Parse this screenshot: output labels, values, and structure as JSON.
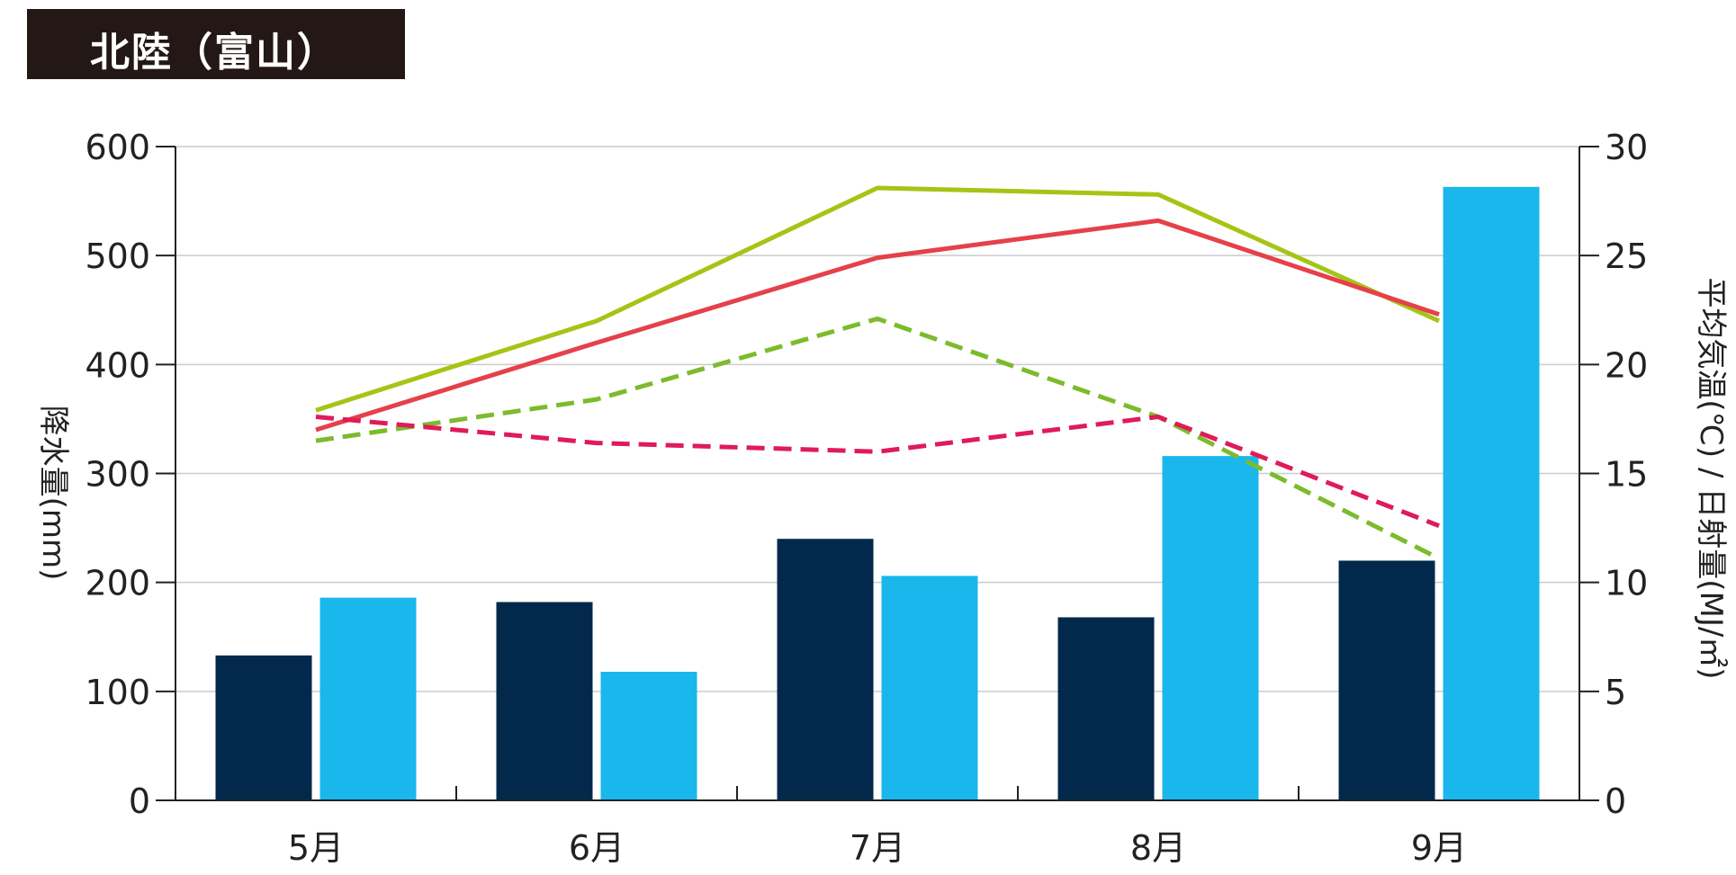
{
  "title": "北陸（富山）",
  "chart_data": {
    "type": "bar",
    "categories": [
      "5月",
      "6月",
      "7月",
      "8月",
      "9月"
    ],
    "left_axis": {
      "label": "降水量(mm)",
      "ylim": [
        0,
        600
      ],
      "ticks": [
        0,
        100,
        200,
        300,
        400,
        500,
        600
      ]
    },
    "right_axis": {
      "label": "平均気温(℃) / 日射量(MJ/㎡)",
      "ylim": [
        0,
        30
      ],
      "ticks": [
        0,
        5,
        10,
        15,
        20,
        25,
        30
      ]
    },
    "grid": true,
    "legend": "none",
    "bar_series": [
      {
        "axis": "left",
        "color": "#02294b",
        "values": [
          133,
          182,
          240,
          168,
          220
        ]
      },
      {
        "axis": "left",
        "color": "#1ab7ed",
        "values": [
          186,
          118,
          206,
          316,
          563
        ]
      }
    ],
    "line_series": [
      {
        "axis": "right",
        "color": "#a5c516",
        "dash": false,
        "values": [
          17.9,
          22.0,
          28.1,
          27.8,
          22.0
        ]
      },
      {
        "axis": "right",
        "color": "#e5414b",
        "dash": false,
        "values": [
          17.0,
          21.0,
          24.9,
          26.6,
          22.3
        ]
      },
      {
        "axis": "right",
        "color": "#7cbb2c",
        "dash": true,
        "values": [
          16.5,
          18.4,
          22.1,
          17.6,
          11.1
        ]
      },
      {
        "axis": "right",
        "color": "#df1b59",
        "dash": true,
        "values": [
          17.6,
          16.4,
          16.0,
          17.6,
          12.6
        ]
      }
    ]
  }
}
